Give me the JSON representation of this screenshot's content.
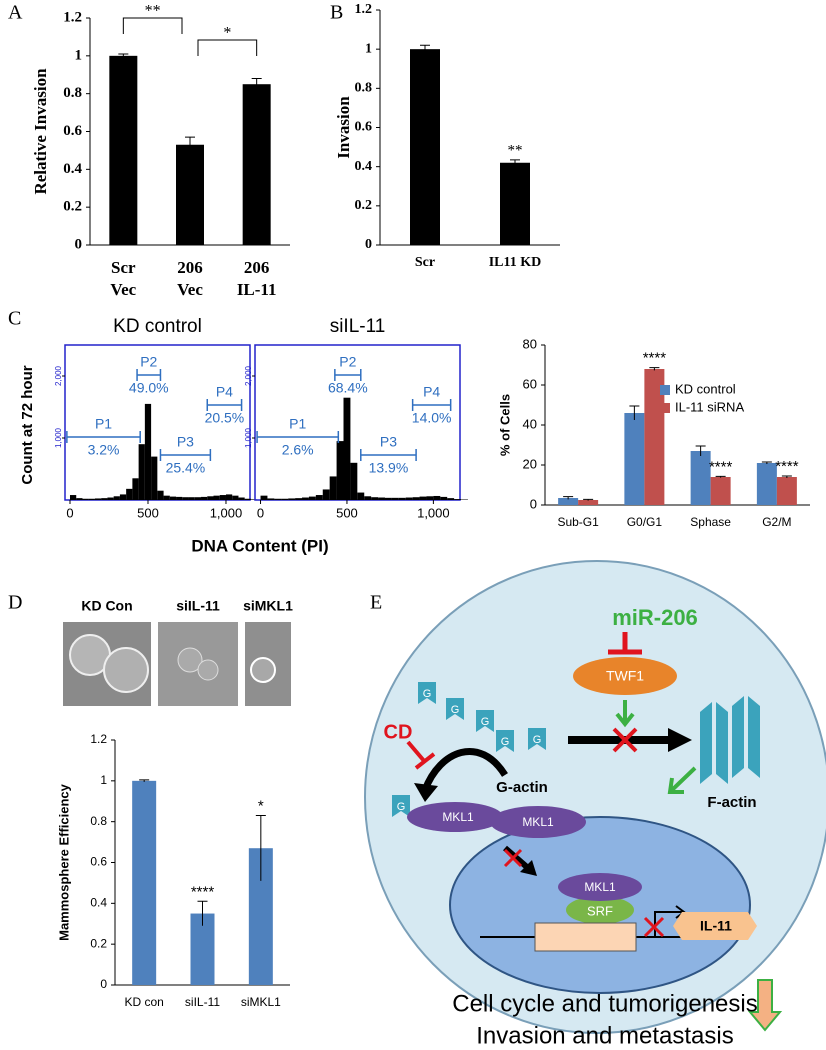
{
  "panel_labels": [
    "A",
    "B",
    "C",
    "D",
    "E"
  ],
  "mammosphere_images": {
    "labels": [
      "KD Con",
      "siIL-11",
      "siMKL1"
    ]
  },
  "chart_data": [
    {
      "type": "bar",
      "categories": [
        [
          "Scr",
          "Vec"
        ],
        [
          "206",
          "Vec"
        ],
        [
          "206",
          "IL-11"
        ]
      ],
      "values": [
        1.0,
        0.53,
        0.85
      ],
      "errors": [
        0.01,
        0.04,
        0.03
      ],
      "color": "#000000",
      "y_label": "Relative Invasion",
      "ylim": [
        0,
        1.2
      ],
      "yticks": [
        0,
        0.2,
        0.4,
        0.6,
        0.8,
        1,
        1.2
      ],
      "comparisons": [
        "**",
        "*"
      ]
    },
    {
      "type": "bar",
      "categories": [
        "Scr",
        "IL11 KD"
      ],
      "values": [
        1.0,
        0.42
      ],
      "errors": [
        0.02,
        0.015
      ],
      "star_labels": [
        null,
        "**"
      ],
      "color": "#000000",
      "y_label": "Invasion",
      "ylim": [
        0,
        1.2
      ],
      "yticks": [
        0,
        0.2,
        0.4,
        0.6,
        0.8,
        1,
        1.2
      ]
    },
    {
      "type": "histogram",
      "title": "KD control",
      "y_label": "Count at 72 hour",
      "x_label": "DNA Content (PI)",
      "bins": [
        0,
        40,
        80,
        120,
        160,
        200,
        240,
        280,
        320,
        360,
        400,
        440,
        480,
        520,
        560,
        600,
        640,
        680,
        720,
        760,
        800,
        840,
        880,
        920,
        960,
        1000,
        1040,
        1080,
        1120,
        1160,
        1200
      ],
      "counts": [
        80,
        30,
        20,
        20,
        25,
        30,
        40,
        60,
        90,
        180,
        350,
        900,
        1550,
        700,
        150,
        70,
        55,
        50,
        45,
        45,
        45,
        50,
        60,
        70,
        80,
        90,
        70,
        40,
        20,
        10
      ],
      "color": "#000000",
      "xlim": [
        -32,
        1154
      ],
      "ylim": [
        0,
        2500
      ],
      "xticks": [
        0,
        500,
        {
          "value": 1000,
          "label": "1,000"
        }
      ],
      "yticks": [
        {
          "value": 1000,
          "label": "1,000"
        },
        {
          "value": 2000,
          "label": "2,000"
        }
      ],
      "gates": [
        {
          "name": "P1",
          "percent": "3.2%",
          "range": [
            -20,
            450
          ]
        },
        {
          "name": "P2",
          "percent": "49.0%",
          "range": [
            430,
            580
          ]
        },
        {
          "name": "P3",
          "percent": "25.4%",
          "range": [
            580,
            900
          ]
        },
        {
          "name": "P4",
          "percent": "20.5%",
          "range": [
            880,
            1100
          ]
        }
      ]
    },
    {
      "type": "histogram",
      "title": "siIL-11",
      "bins": [
        0,
        40,
        80,
        120,
        160,
        200,
        240,
        280,
        320,
        360,
        400,
        440,
        480,
        520,
        560,
        600,
        640,
        680,
        720,
        760,
        800,
        840,
        880,
        920,
        960,
        1000,
        1040,
        1080,
        1120,
        1160,
        1200
      ],
      "counts": [
        70,
        25,
        20,
        20,
        25,
        30,
        40,
        55,
        80,
        170,
        380,
        950,
        1650,
        600,
        120,
        60,
        45,
        40,
        35,
        35,
        35,
        40,
        45,
        55,
        60,
        65,
        50,
        30,
        15,
        8
      ],
      "color": "#000000",
      "xlim": [
        -32,
        1154
      ],
      "ylim": [
        0,
        2500
      ],
      "xticks": [
        0,
        500,
        {
          "value": 1000,
          "label": "1,000"
        }
      ],
      "yticks": [
        {
          "value": 1000,
          "label": "1,000"
        },
        {
          "value": 2000,
          "label": "2,000"
        }
      ],
      "gates": [
        {
          "name": "P1",
          "percent": "2.6%",
          "range": [
            -20,
            450
          ]
        },
        {
          "name": "P2",
          "percent": "68.4%",
          "range": [
            430,
            580
          ]
        },
        {
          "name": "P3",
          "percent": "13.9%",
          "range": [
            580,
            900
          ]
        },
        {
          "name": "P4",
          "percent": "14.0%",
          "range": [
            880,
            1100
          ]
        }
      ]
    },
    {
      "type": "bar",
      "categories": [
        "Sub-G1",
        "G0/G1",
        "Sphase",
        "G2/M"
      ],
      "y_label": "% of Cells",
      "ylim": [
        0,
        80
      ],
      "yticks": [
        0,
        20,
        40,
        60,
        80
      ],
      "legend": "upper right",
      "series": [
        {
          "name": "KD control",
          "color": "#4f81bd",
          "values": [
            3.5,
            46,
            27,
            21
          ],
          "errors": [
            0.7,
            3.5,
            2.5,
            0.5
          ]
        },
        {
          "name": "IL-11 siRNA",
          "color": "#c0504d",
          "values": [
            2.5,
            68,
            14,
            14
          ],
          "errors": [
            0.3,
            0.7,
            0.3,
            0.5
          ],
          "star_labels": [
            null,
            "****",
            "****",
            "****"
          ]
        }
      ]
    },
    {
      "type": "bar",
      "categories": [
        "KD con",
        "siIL-11",
        "siMKL1"
      ],
      "values": [
        1.0,
        0.35,
        0.67
      ],
      "errors": [
        0.005,
        0.06,
        0.16
      ],
      "star_labels": [
        null,
        "****",
        "*"
      ],
      "color": "#4f81bd",
      "y_label": "Mammosphere Efficiency",
      "ylim": [
        0,
        1.2
      ],
      "yticks": [
        0,
        0.2,
        0.4,
        0.6,
        0.8,
        1,
        1.2
      ]
    }
  ],
  "diagram": {
    "mir": "miR-206",
    "twf1": "TWF1",
    "cd": "CD",
    "g": "G",
    "g_actin": "G-actin",
    "f_actin": "F-actin",
    "mkl1": "MKL1",
    "srf": "SRF",
    "il11": "IL-11",
    "outcome_1": "Cell cycle and tumorigenesis",
    "outcome_2": "Invasion and metastasis"
  }
}
